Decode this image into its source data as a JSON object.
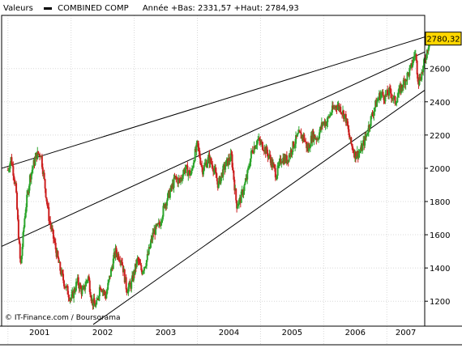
{
  "header": {
    "series_label": "Valeurs",
    "instrument": "COMBINED COMP",
    "stats": "Année +Bas: 2331,57 +Haut: 2784,93"
  },
  "last_price_label": "2780,32",
  "credit": "© IT-Finance.com / Boursorama",
  "colors": {
    "up": "#2ca52c",
    "down": "#cc2020",
    "lines": "#000000",
    "grid": "#d8d8d8",
    "price_box": "#ffd700"
  },
  "chart_data": {
    "type": "candlestick",
    "title": "COMBINED COMP",
    "x_unit": "year",
    "xlim": [
      2000.9,
      2007.6
    ],
    "ylim": [
      1050,
      2920
    ],
    "y_ticks": [
      "1200",
      "1400",
      "1600",
      "1800",
      "2000",
      "2200",
      "2400",
      "2600"
    ],
    "x_tick_labels": [
      "2001",
      "2002",
      "2003",
      "2004",
      "2005",
      "2006",
      "2007"
    ],
    "grid": "horizontal and vertical",
    "series": [
      {
        "name": "COMBINED COMP",
        "points": [
          [
            2001.0,
            1990
          ],
          [
            2001.05,
            2060
          ],
          [
            2001.12,
            1900
          ],
          [
            2001.2,
            1400
          ],
          [
            2001.27,
            1730
          ],
          [
            2001.35,
            1950
          ],
          [
            2001.45,
            2080
          ],
          [
            2001.52,
            2090
          ],
          [
            2001.6,
            1850
          ],
          [
            2001.65,
            1700
          ],
          [
            2001.72,
            1580
          ],
          [
            2001.82,
            1400
          ],
          [
            2001.9,
            1300
          ],
          [
            2002.0,
            1210
          ],
          [
            2002.1,
            1320
          ],
          [
            2002.18,
            1250
          ],
          [
            2002.27,
            1350
          ],
          [
            2002.33,
            1200
          ],
          [
            2002.4,
            1170
          ],
          [
            2002.46,
            1300
          ],
          [
            2002.55,
            1230
          ],
          [
            2002.62,
            1360
          ],
          [
            2002.7,
            1500
          ],
          [
            2002.8,
            1450
          ],
          [
            2002.88,
            1270
          ],
          [
            2002.95,
            1300
          ],
          [
            2003.05,
            1450
          ],
          [
            2003.12,
            1380
          ],
          [
            2003.2,
            1450
          ],
          [
            2003.3,
            1610
          ],
          [
            2003.4,
            1660
          ],
          [
            2003.48,
            1780
          ],
          [
            2003.58,
            1870
          ],
          [
            2003.65,
            1940
          ],
          [
            2003.72,
            1920
          ],
          [
            2003.8,
            2000
          ],
          [
            2003.9,
            1960
          ],
          [
            2003.95,
            2070
          ],
          [
            2004.0,
            2140
          ],
          [
            2004.08,
            1990
          ],
          [
            2004.18,
            2060
          ],
          [
            2004.25,
            2010
          ],
          [
            2004.33,
            1900
          ],
          [
            2004.4,
            1980
          ],
          [
            2004.46,
            2030
          ],
          [
            2004.54,
            2070
          ],
          [
            2004.62,
            1780
          ],
          [
            2004.68,
            1810
          ],
          [
            2004.78,
            1940
          ],
          [
            2004.86,
            2100
          ],
          [
            2004.95,
            2170
          ],
          [
            2005.05,
            2130
          ],
          [
            2005.15,
            2060
          ],
          [
            2005.25,
            1960
          ],
          [
            2005.33,
            2060
          ],
          [
            2005.42,
            2050
          ],
          [
            2005.52,
            2140
          ],
          [
            2005.6,
            2200
          ],
          [
            2005.68,
            2190
          ],
          [
            2005.75,
            2110
          ],
          [
            2005.82,
            2200
          ],
          [
            2005.9,
            2180
          ],
          [
            2005.98,
            2270
          ],
          [
            2006.05,
            2280
          ],
          [
            2006.12,
            2340
          ],
          [
            2006.2,
            2380
          ],
          [
            2006.27,
            2360
          ],
          [
            2006.35,
            2300
          ],
          [
            2006.42,
            2160
          ],
          [
            2006.5,
            2080
          ],
          [
            2006.58,
            2100
          ],
          [
            2006.66,
            2180
          ],
          [
            2006.75,
            2300
          ],
          [
            2006.82,
            2380
          ],
          [
            2006.9,
            2450
          ],
          [
            2006.97,
            2430
          ],
          [
            2007.05,
            2460
          ],
          [
            2007.13,
            2400
          ],
          [
            2007.22,
            2480
          ],
          [
            2007.3,
            2540
          ],
          [
            2007.38,
            2600
          ],
          [
            2007.45,
            2700
          ],
          [
            2007.5,
            2520
          ],
          [
            2007.56,
            2580
          ],
          [
            2007.62,
            2680
          ],
          [
            2007.68,
            2780
          ]
        ]
      }
    ],
    "trendlines": [
      {
        "name": "upper channel",
        "from": [
          2000.9,
          2000
        ],
        "to": [
          2007.6,
          2790
        ]
      },
      {
        "name": "middle channel",
        "from": [
          2000.9,
          1530
        ],
        "to": [
          2007.6,
          2700
        ]
      },
      {
        "name": "lower support",
        "from": [
          2002.35,
          1060
        ],
        "to": [
          2007.6,
          2470
        ]
      }
    ],
    "last_value": 2780.32
  }
}
